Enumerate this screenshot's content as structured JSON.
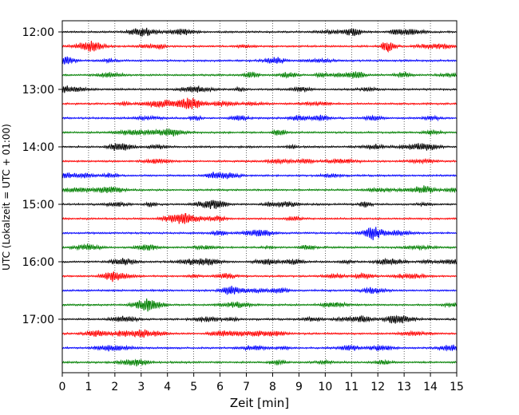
{
  "chart_data": {
    "type": "line",
    "subtype": "helicorder",
    "xlabel": "Zeit  [min]",
    "ylabel": "UTC (Lokalzeit = UTC + 01:00)",
    "xlim": [
      0,
      15
    ],
    "x_ticks": [
      0,
      1,
      2,
      3,
      4,
      5,
      6,
      7,
      8,
      9,
      10,
      11,
      12,
      13,
      14,
      15
    ],
    "y_tick_labels": [
      "12:00",
      "13:00",
      "14:00",
      "15:00",
      "16:00",
      "17:00"
    ],
    "vertical_grid": true,
    "grid_style": "dotted",
    "trace_minutes": 15,
    "trace_count": 24,
    "trace_colors": [
      "#000000",
      "#ff0000",
      "#0000ff",
      "#008000"
    ],
    "traces_per_label": 4
  }
}
